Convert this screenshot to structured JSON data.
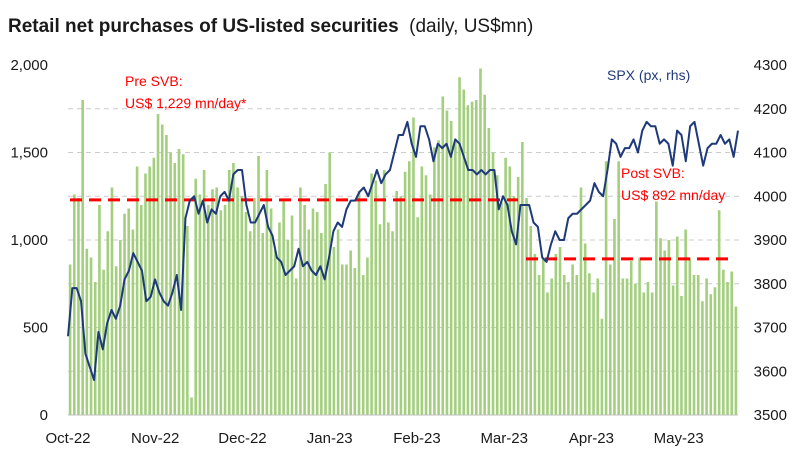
{
  "chart_data": {
    "type": "bar",
    "title": "Retail net purchases of US-listed securities",
    "subtitle": "(daily, US$mn)",
    "x_tick_labels": [
      "Oct-22",
      "Nov-22",
      "Dec-22",
      "Jan-23",
      "Feb-23",
      "Mar-23",
      "Apr-23",
      "May-23"
    ],
    "y_left": {
      "ticks": [
        "0",
        "500",
        "1,000",
        "1,500",
        "2,000"
      ],
      "min": 0,
      "max": 2000
    },
    "y_right": {
      "ticks": [
        "3500",
        "3600",
        "3700",
        "3800",
        "3900",
        "4000",
        "4100",
        "4200",
        "4300"
      ],
      "min": 3500,
      "max": 4300
    },
    "grid": true,
    "colors": {
      "bars": "#a3cf7f",
      "line": "#1f3a7a",
      "avg_line": "#ff0000",
      "grid": "#cccccc"
    },
    "bar_series": {
      "values": [
        860,
        1260,
        1240,
        1800,
        950,
        900,
        760,
        1200,
        830,
        1050,
        1300,
        850,
        1000,
        1150,
        1180,
        1060,
        1420,
        1200,
        1380,
        1420,
        1470,
        1720,
        1660,
        1600,
        1500,
        1440,
        1520,
        1490,
        1080,
        100,
        1350,
        1260,
        1400,
        1200,
        1290,
        1300,
        1170,
        1200,
        1400,
        1440,
        1300,
        1250,
        1160,
        1050,
        1240,
        1480,
        1040,
        1400,
        1180,
        940,
        1100,
        1220,
        1000,
        1140,
        780,
        1300,
        1200,
        1060,
        1180,
        1160,
        1040,
        1320,
        1500,
        960,
        1060,
        860,
        860,
        940,
        840,
        1280,
        800,
        900,
        1380,
        1340,
        1090,
        1400,
        1100,
        1050,
        1280,
        1250,
        1390,
        1450,
        1700,
        1130,
        1420,
        1370,
        1260,
        1530,
        1570,
        1820,
        1740,
        1680,
        1560,
        1930,
        1860,
        1770,
        1790,
        1800,
        1980,
        1830,
        1640,
        1500,
        1370,
        1220,
        1470,
        1420,
        1250,
        1360,
        1560,
        1240,
        1080,
        920,
        800,
        900,
        700,
        780,
        920,
        960,
        800,
        760,
        860,
        800,
        1300,
        980,
        810,
        700,
        780,
        550,
        1450,
        860,
        1120,
        1450,
        780,
        780,
        880,
        750,
        900,
        700,
        760,
        700,
        1220,
        1010,
        940,
        1000,
        740,
        1020,
        680,
        1060,
        900,
        800,
        800,
        650,
        780,
        690,
        730,
        1170,
        830,
        760,
        820,
        620
      ],
      "x_start": "2022-10-03",
      "x_end": "2023-05-19"
    },
    "line_series": {
      "name": "SPX (px, rhs)",
      "values": [
        3680,
        3790,
        3790,
        3760,
        3640,
        3610,
        3580,
        3690,
        3650,
        3710,
        3740,
        3720,
        3750,
        3810,
        3830,
        3870,
        3850,
        3830,
        3760,
        3770,
        3810,
        3780,
        3760,
        3750,
        3780,
        3820,
        3740,
        3950,
        3990,
        4000,
        3960,
        3990,
        3940,
        3970,
        3960,
        4000,
        4010,
        3990,
        4050,
        4060,
        4060,
        3980,
        3940,
        3940,
        3960,
        3980,
        3930,
        3910,
        3860,
        3850,
        3820,
        3830,
        3840,
        3880,
        3840,
        3850,
        3830,
        3820,
        3840,
        3810,
        3860,
        3920,
        3940,
        3930,
        3970,
        3990,
        3990,
        4010,
        4020,
        4000,
        4030,
        4060,
        4030,
        4050,
        4060,
        4100,
        4140,
        4140,
        4170,
        4120,
        4090,
        4160,
        4160,
        4130,
        4080,
        4120,
        4110,
        4120,
        4090,
        4130,
        4120,
        4090,
        4060,
        4060,
        4050,
        4060,
        4050,
        4060,
        4060,
        3970,
        4000,
        3980,
        3920,
        3890,
        3980,
        3980,
        3980,
        3940,
        3930,
        3860,
        3850,
        3890,
        3920,
        3900,
        3900,
        3950,
        3960,
        3960,
        3970,
        3980,
        3990,
        4030,
        4010,
        4000,
        4060,
        4130,
        4120,
        4090,
        4110,
        4110,
        4130,
        4100,
        4150,
        4170,
        4160,
        4160,
        4120,
        4130,
        4120,
        4070,
        4150,
        4140,
        4080,
        4160,
        4170,
        4120,
        4070,
        4110,
        4120,
        4120,
        4140,
        4120,
        4130,
        4090,
        4150
      ]
    },
    "annotations": {
      "pre_svb": {
        "line1": "Pre SVB:",
        "line2": "US$ 1,229 mn/day*",
        "value": 1229
      },
      "post_svb": {
        "line1": "Post SVB:",
        "line2": "US$ 892 mn/day",
        "value": 892
      },
      "spx_label": "SPX (px, rhs)"
    }
  }
}
